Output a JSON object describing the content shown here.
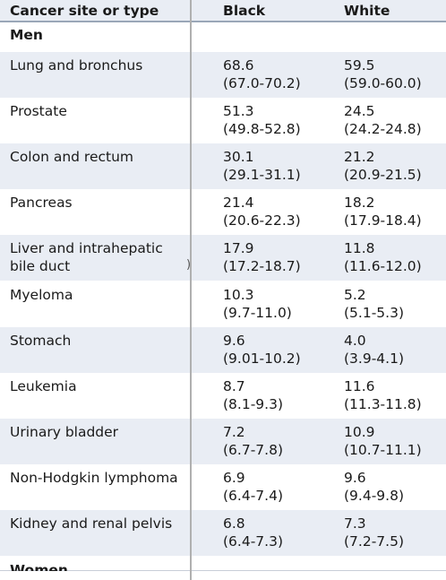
{
  "header": {
    "col_site": "Cancer site or type",
    "col_black": "Black",
    "col_white": "White"
  },
  "section_men": "Men",
  "rows": [
    {
      "site": [
        "Lung and bronchus"
      ],
      "black": [
        "68.6",
        "(67.0-70.2)"
      ],
      "white": [
        "59.5",
        "(59.0-60.0)"
      ]
    },
    {
      "site": [
        "Prostate"
      ],
      "black": [
        "51.3",
        "(49.8-52.8)"
      ],
      "white": [
        "24.5",
        "(24.2-24.8)"
      ]
    },
    {
      "site": [
        "Colon and rectum"
      ],
      "black": [
        "30.1",
        "(29.1-31.1)"
      ],
      "white": [
        "21.2",
        "(20.9-21.5)"
      ]
    },
    {
      "site": [
        "Pancreas"
      ],
      "black": [
        "21.4",
        "(20.6-22.3)"
      ],
      "white": [
        "18.2",
        "(17.9-18.4)"
      ]
    },
    {
      "site": [
        "Liver and intrahepatic",
        "bile duct"
      ],
      "black": [
        "17.9",
        "(17.2-18.7)"
      ],
      "white": [
        "11.8",
        "(11.6-12.0)"
      ]
    },
    {
      "site": [
        "Myeloma"
      ],
      "black": [
        "10.3",
        "(9.7-11.0)"
      ],
      "white": [
        "5.2",
        "(5.1-5.3)"
      ]
    },
    {
      "site": [
        "Stomach"
      ],
      "black": [
        "9.6",
        "(9.01-10.2)"
      ],
      "white": [
        "4.0",
        "(3.9-4.1)"
      ]
    },
    {
      "site": [
        "Leukemia"
      ],
      "black": [
        "8.7",
        "(8.1-9.3)"
      ],
      "white": [
        "11.6",
        "(11.3-11.8)"
      ]
    },
    {
      "site": [
        "Urinary bladder"
      ],
      "black": [
        "7.2",
        "(6.7-7.8)"
      ],
      "white": [
        "10.9",
        "(10.7-11.1)"
      ]
    },
    {
      "site": [
        "Non-Hodgkin lymphoma"
      ],
      "black": [
        "6.9",
        "(6.4-7.4)"
      ],
      "white": [
        "9.6",
        "(9.4-9.8)"
      ]
    },
    {
      "site": [
        "Kidney and renal pelvis"
      ],
      "black": [
        "6.8",
        "(6.4-7.3)"
      ],
      "white": [
        "7.3",
        "(7.2-7.5)"
      ]
    }
  ],
  "stray_mark": ")",
  "section_women": "Women",
  "colors": {
    "shade": "#e9edf4",
    "rule": "#9aa7b8",
    "divider": "#b0b0b0"
  }
}
